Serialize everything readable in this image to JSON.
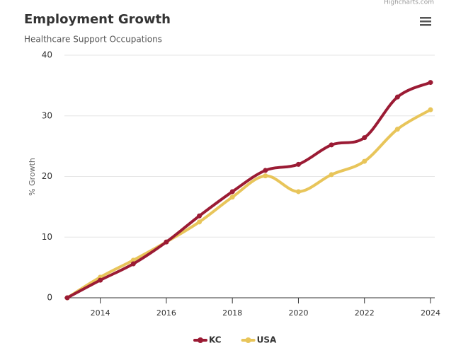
{
  "chart_data": {
    "type": "line",
    "title": "Employment Growth",
    "subtitle": "Healthcare Support Occupations",
    "credit": "Highcharts.com",
    "y_label": "% Growth",
    "x": [
      2013,
      2014,
      2015,
      2016,
      2017,
      2018,
      2019,
      2020,
      2021,
      2022,
      2023,
      2024
    ],
    "series": [
      {
        "name": "KC",
        "color": "#9b1b34",
        "values": [
          0,
          2.9,
          5.6,
          9.2,
          13.5,
          17.5,
          21.0,
          22.0,
          25.2,
          26.4,
          33.1,
          35.5
        ]
      },
      {
        "name": "USA",
        "color": "#e8c55a",
        "values": [
          0,
          3.4,
          6.2,
          9.2,
          12.5,
          16.6,
          20.1,
          17.5,
          20.3,
          22.5,
          27.8,
          31.0
        ]
      }
    ],
    "xlim": [
      2013,
      2024
    ],
    "xticks": [
      2014,
      2016,
      2018,
      2020,
      2022,
      2024
    ],
    "ylim": [
      0,
      40
    ],
    "yticks": [
      0,
      10,
      20,
      30,
      40
    ],
    "grid": true,
    "smooth": true,
    "legend": "bottom"
  }
}
